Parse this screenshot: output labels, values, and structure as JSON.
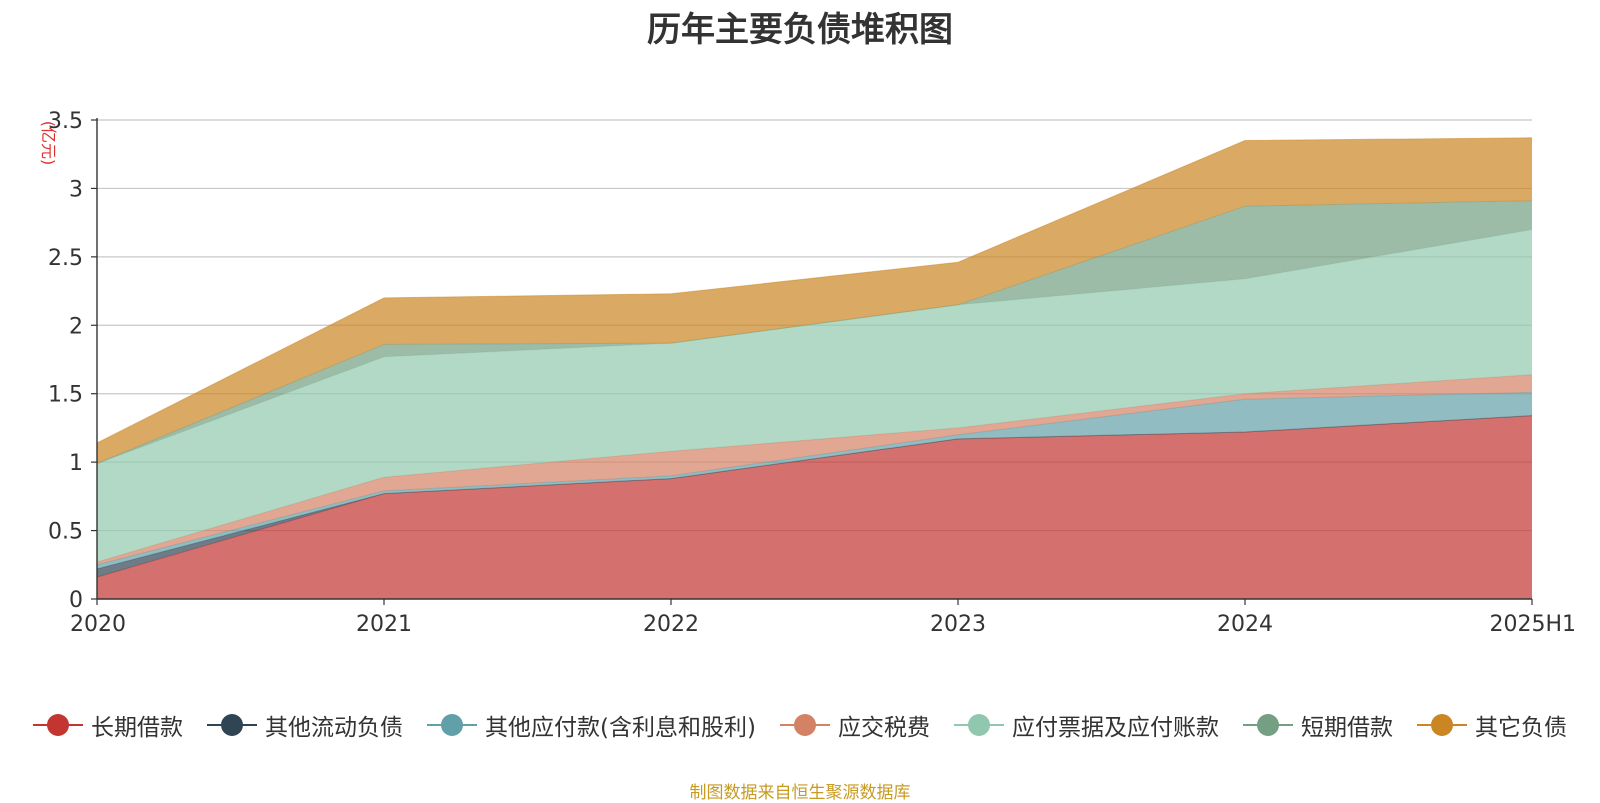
{
  "title": "历年主要负债堆积图",
  "source_note": "制图数据来自恒生聚源数据库",
  "colors": {
    "source_note": "#c79b22",
    "unit_label": "#e03030",
    "title": "#333333"
  },
  "legend": [
    {
      "label": "长期借款",
      "color": "#c23531"
    },
    {
      "label": "其他流动负债",
      "color": "#2f4554"
    },
    {
      "label": "其他应付款(含利息和股利)",
      "color": "#61a0a8"
    },
    {
      "label": "应交税费",
      "color": "#d48265"
    },
    {
      "label": "应付票据及应付账款",
      "color": "#91c7ae"
    },
    {
      "label": "短期借款",
      "color": "#749f83"
    },
    {
      "label": "其它负债",
      "color": "#ca8622"
    }
  ],
  "chart_data": {
    "type": "area",
    "stacked": true,
    "title": "历年主要负债堆积图",
    "ylabel": "(亿元)",
    "xlabel": "",
    "categories": [
      "2020",
      "2021",
      "2022",
      "2023",
      "2024",
      "2025H1"
    ],
    "ylim": [
      0,
      3.5
    ],
    "yticks": [
      "0",
      "0.5",
      "1",
      "1.5",
      "2",
      "2.5",
      "3",
      "3.5"
    ],
    "grid": true,
    "legend_position": "bottom",
    "series": [
      {
        "name": "长期借款",
        "color": "#c23531",
        "values": [
          0.16,
          0.77,
          0.88,
          1.17,
          1.22,
          1.34
        ]
      },
      {
        "name": "其他流动负债",
        "color": "#2f4554",
        "values": [
          0.06,
          0.0,
          0.0,
          0.0,
          0.0,
          0.0
        ]
      },
      {
        "name": "其他应付款(含利息和股利)",
        "color": "#61a0a8",
        "values": [
          0.03,
          0.02,
          0.02,
          0.03,
          0.24,
          0.17
        ]
      },
      {
        "name": "应交税费",
        "color": "#d48265",
        "values": [
          0.02,
          0.1,
          0.18,
          0.05,
          0.04,
          0.13
        ]
      },
      {
        "name": "应付票据及应付账款",
        "color": "#91c7ae",
        "values": [
          0.72,
          0.88,
          0.79,
          0.9,
          0.84,
          1.06
        ]
      },
      {
        "name": "短期借款",
        "color": "#749f83",
        "values": [
          0.0,
          0.09,
          0.0,
          0.0,
          0.53,
          0.21
        ]
      },
      {
        "name": "其它负债",
        "color": "#ca8622",
        "values": [
          0.15,
          0.34,
          0.36,
          0.31,
          0.48,
          0.46
        ]
      }
    ]
  }
}
